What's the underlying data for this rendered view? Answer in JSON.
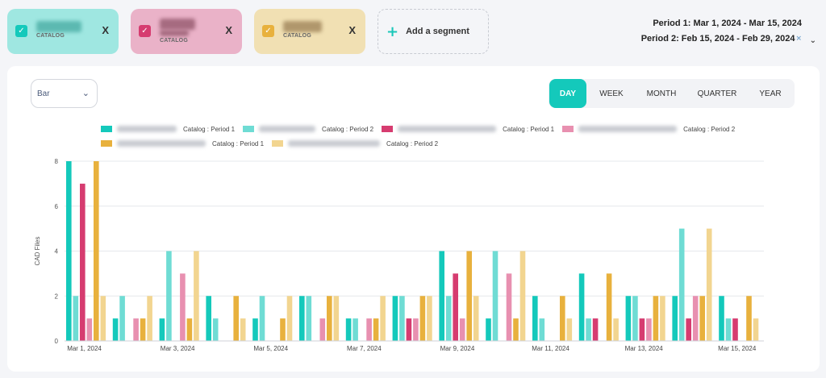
{
  "segments": [
    {
      "sub": "CATALOG",
      "close": "X",
      "bg": "#9fe7e1",
      "check_color": "#14c9bb",
      "name_color": "#5cb9b1"
    },
    {
      "sub": "CATALOG",
      "close": "X",
      "bg": "#eab2c8",
      "check_color": "#d63c70",
      "name_color": "#a66b80"
    },
    {
      "sub": "CATALOG",
      "close": "X",
      "bg": "#f1e0b3",
      "check_color": "#e8b13d",
      "name_color": "#b0976c"
    }
  ],
  "add_segment": {
    "label": "Add a segment"
  },
  "periods": {
    "period1": "Period 1: Mar 1, 2024 - Mar 15, 2024",
    "period2": "Period 2: Feb 15, 2024 - Feb 29, 2024"
  },
  "chart_type_select": {
    "value": "Bar"
  },
  "range_tabs": [
    {
      "label": "DAY",
      "active": true
    },
    {
      "label": "WEEK",
      "active": false
    },
    {
      "label": "MONTH",
      "active": false
    },
    {
      "label": "QUARTER",
      "active": false
    },
    {
      "label": "YEAR",
      "active": false
    }
  ],
  "legend_items": [
    {
      "label": "Catalog : Period 1",
      "color": "#14c9bb"
    },
    {
      "label": "Catalog : Period 2",
      "color": "#6fdcd4"
    },
    {
      "label": "Catalog : Period 1",
      "color": "#d63c70"
    },
    {
      "label": "Catalog : Period 2",
      "color": "#e890b0"
    },
    {
      "label": "Catalog : Period 1",
      "color": "#e8b13d"
    },
    {
      "label": "Catalog : Period 2",
      "color": "#f2d590"
    }
  ],
  "chart_data": {
    "type": "bar",
    "ylabel": "CAD Files",
    "xlabel": "",
    "ylim": [
      0,
      8
    ],
    "yticks": [
      0,
      2,
      4,
      6,
      8
    ],
    "grid": true,
    "legend_position": "top",
    "categories": [
      "Mar 1, 2024",
      "Mar 2, 2024",
      "Mar 3, 2024",
      "Mar 4, 2024",
      "Mar 5, 2024",
      "Mar 6, 2024",
      "Mar 7, 2024",
      "Mar 8, 2024",
      "Mar 9, 2024",
      "Mar 10, 2024",
      "Mar 11, 2024",
      "Mar 12, 2024",
      "Mar 13, 2024",
      "Mar 14, 2024",
      "Mar 15, 2024"
    ],
    "tick_labels": [
      "Mar 1, 2024",
      "",
      "Mar 3, 2024",
      "",
      "Mar 5, 2024",
      "",
      "Mar 7, 2024",
      "",
      "Mar 9, 2024",
      "",
      "Mar 11, 2024",
      "",
      "Mar 13, 2024",
      "",
      "Mar 15, 2024"
    ],
    "series": [
      {
        "color": "#14c9bb",
        "values": [
          8,
          1,
          1,
          2,
          1,
          2,
          1,
          2,
          4,
          1,
          2,
          3,
          2,
          2,
          2
        ]
      },
      {
        "color": "#6fdcd4",
        "values": [
          2,
          2,
          4,
          1,
          2,
          2,
          1,
          2,
          2,
          4,
          1,
          1,
          2,
          5,
          1
        ]
      },
      {
        "color": "#d63c70",
        "values": [
          7,
          0,
          0,
          0,
          0,
          0,
          0,
          1,
          3,
          0,
          0,
          1,
          1,
          1,
          1
        ]
      },
      {
        "color": "#e890b0",
        "values": [
          1,
          1,
          3,
          0,
          0,
          1,
          1,
          1,
          1,
          3,
          0,
          0,
          1,
          2,
          0
        ]
      },
      {
        "color": "#e8b13d",
        "values": [
          8,
          1,
          1,
          2,
          1,
          2,
          1,
          2,
          4,
          1,
          2,
          3,
          2,
          2,
          2
        ]
      },
      {
        "color": "#f2d590",
        "values": [
          2,
          2,
          4,
          1,
          2,
          2,
          2,
          2,
          2,
          4,
          1,
          1,
          2,
          5,
          1
        ]
      }
    ]
  }
}
